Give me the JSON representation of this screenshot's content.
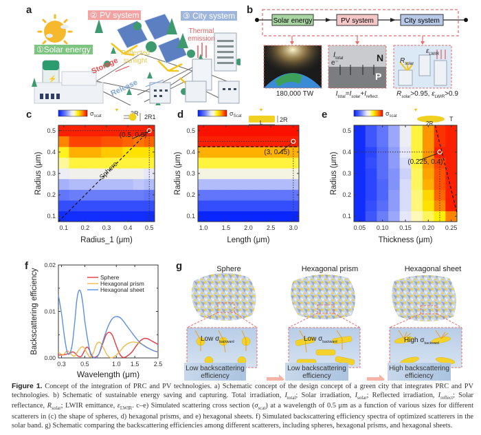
{
  "panel_labels": [
    "a",
    "b",
    "c",
    "d",
    "e",
    "f",
    "g"
  ],
  "panel_a": {
    "solar_energy": "①Solar energy",
    "pv_system": "② PV system",
    "city_system": "③ City system",
    "reflected_sunlight": "Reflected sunlight",
    "thermal_emission": "Thermal emission",
    "storage": "Storage",
    "release": "Release",
    "colors": {
      "solar": "#7cc47f",
      "pv": "#f4a3a3",
      "city": "#9fb6dc",
      "storage": "#e84c4c",
      "release": "#7ea6d8",
      "reflected": "#f0d060"
    }
  },
  "panel_b": {
    "nodes": [
      {
        "label": "Solar energy",
        "color": "#a8d5a2"
      },
      {
        "label": "PV system",
        "color": "#f6c7c7"
      },
      {
        "label": "City system",
        "color": "#b8c9e8"
      }
    ],
    "captions": [
      "180,000 TW",
      "I_total = I_solar + I_reflect",
      "R_solar>0.95, ε_LWIR>0.9"
    ],
    "inset_text": {
      "i_total": "I",
      "i_total_sub": "total",
      "e": "e⁻",
      "n": "N",
      "p": "P",
      "r_solar": "R",
      "r_solar_sub": "solar",
      "eps": "ε",
      "eps_sub": "LWIR",
      "earth_digits": "180000000000000000W"
    }
  },
  "chart_data": [
    {
      "panel": "c",
      "type": "heatmap",
      "title": "",
      "xlabel": "Radius_1 (μm)",
      "ylabel": "Radius (μm)",
      "xlim": [
        0.075,
        0.525
      ],
      "ylim": [
        0.075,
        0.525
      ],
      "xticks": [
        "0.1",
        "0.2",
        "0.3",
        "0.4",
        "0.5"
      ],
      "yticks": [
        "0.1",
        "0.2",
        "0.3",
        "0.4",
        "0.5"
      ],
      "colorbar": {
        "min": "0.0",
        "max": "2.3",
        "label": "σscat"
      },
      "schematic": {
        "source": "TFSF",
        "dim1": "2R",
        "dim2": "2R1"
      },
      "annotation": {
        "text": "(0.5, 0.5)",
        "x": 0.5,
        "y": 0.5
      },
      "diagonal_label": "Sphere",
      "x": [
        0.1,
        0.15,
        0.2,
        0.25,
        0.3,
        0.35,
        0.4,
        0.45,
        0.5
      ],
      "y": [
        0.1,
        0.15,
        0.2,
        0.25,
        0.3,
        0.35,
        0.4,
        0.45,
        0.5
      ],
      "z_rows_bottom_to_top": [
        [
          0.04,
          0.04,
          0.04,
          0.04,
          0.04,
          0.04,
          0.04,
          0.04,
          0.04
        ],
        [
          0.12,
          0.12,
          0.12,
          0.12,
          0.12,
          0.12,
          0.12,
          0.12,
          0.12
        ],
        [
          0.22,
          0.24,
          0.24,
          0.24,
          0.24,
          0.24,
          0.24,
          0.24,
          0.22
        ],
        [
          0.34,
          0.36,
          0.36,
          0.36,
          0.36,
          0.36,
          0.36,
          0.38,
          0.36
        ],
        [
          0.46,
          0.48,
          0.48,
          0.48,
          0.48,
          0.48,
          0.48,
          0.48,
          0.44
        ],
        [
          0.58,
          0.64,
          0.64,
          0.64,
          0.64,
          0.64,
          0.64,
          0.64,
          0.64
        ],
        [
          0.66,
          0.78,
          0.78,
          0.78,
          0.74,
          0.74,
          0.7,
          0.7,
          0.7
        ],
        [
          0.84,
          0.92,
          0.92,
          0.92,
          0.9,
          0.9,
          0.88,
          0.86,
          0.88
        ],
        [
          0.96,
          0.96,
          0.96,
          0.96,
          0.96,
          0.96,
          0.96,
          0.96,
          0.96
        ]
      ]
    },
    {
      "panel": "d",
      "type": "heatmap",
      "xlabel": "Length (μm)",
      "ylabel": "Radius (μm)",
      "xlim": [
        0.875,
        3.125
      ],
      "ylim": [
        0.075,
        0.525
      ],
      "xticks": [
        "1.0",
        "1.5",
        "2.0",
        "2.5",
        "3.0"
      ],
      "yticks": [
        "0.1",
        "0.2",
        "0.3",
        "0.4",
        "0.5"
      ],
      "colorbar": {
        "min": "0.0",
        "max": "2.5",
        "label": "σScat"
      },
      "schematic": {
        "source": "TFSF",
        "dim1": "2R",
        "dim2": "L"
      },
      "annotation": {
        "text": "(3, 0.45)",
        "x": 3.0,
        "y": 0.45
      },
      "dashed_line_y": 0.425,
      "x": [
        1.0,
        1.25,
        1.5,
        1.75,
        2.0,
        2.25,
        2.5,
        2.75,
        3.0
      ],
      "y": [
        0.1,
        0.15,
        0.2,
        0.25,
        0.3,
        0.35,
        0.4,
        0.45,
        0.5
      ],
      "row_values_bottom_to_top": [
        0.02,
        0.12,
        0.22,
        0.36,
        0.5,
        0.64,
        0.78,
        0.96,
        0.98
      ]
    },
    {
      "panel": "e",
      "type": "heatmap",
      "xlabel": "Thickness (μm)",
      "ylabel": "Radius (μm)",
      "xlim": [
        0.0375,
        0.2625
      ],
      "ylim": [
        0.075,
        0.525
      ],
      "xticks": [
        "0.05",
        "0.10",
        "0.15",
        "0.20",
        "0.25"
      ],
      "yticks": [
        "0.1",
        "0.2",
        "0.3",
        "0.4",
        "0.5"
      ],
      "colorbar": {
        "min": "0.0",
        "max": "0.33",
        "label": "σscat"
      },
      "schematic": {
        "source": "TFSF",
        "dim1": "2R",
        "dim2": "T"
      },
      "annotation": {
        "text": "(0.225, 0.4)",
        "x": 0.225,
        "y": 0.4
      },
      "x": [
        0.05,
        0.075,
        0.1,
        0.125,
        0.15,
        0.175,
        0.2,
        0.225,
        0.25
      ],
      "y": [
        0.1,
        0.15,
        0.2,
        0.25,
        0.3,
        0.35,
        0.4,
        0.45,
        0.5
      ],
      "z_rows_bottom_to_top": [
        [
          0.04,
          0.14,
          0.24,
          0.32,
          0.44,
          0.56,
          0.62,
          0.68,
          0.84
        ],
        [
          0.04,
          0.12,
          0.2,
          0.3,
          0.42,
          0.6,
          0.7,
          0.84,
          0.96
        ],
        [
          0.04,
          0.1,
          0.18,
          0.3,
          0.42,
          0.6,
          0.72,
          0.88,
          0.96
        ],
        [
          0.04,
          0.1,
          0.18,
          0.28,
          0.42,
          0.62,
          0.78,
          0.9,
          0.96
        ],
        [
          0.04,
          0.1,
          0.2,
          0.28,
          0.4,
          0.62,
          0.8,
          0.9,
          0.96
        ],
        [
          0.04,
          0.12,
          0.2,
          0.3,
          0.42,
          0.64,
          0.82,
          0.92,
          0.96
        ],
        [
          0.04,
          0.1,
          0.2,
          0.3,
          0.44,
          0.64,
          0.82,
          0.96,
          0.96
        ],
        [
          0.04,
          0.14,
          0.22,
          0.32,
          0.46,
          0.64,
          0.82,
          0.94,
          0.96
        ],
        [
          0.04,
          0.14,
          0.22,
          0.32,
          0.46,
          0.64,
          0.82,
          0.94,
          0.96
        ]
      ],
      "dashed_line": [
        [
          0.215,
          0.525
        ],
        [
          0.262,
          0.12
        ]
      ]
    },
    {
      "panel": "f",
      "type": "line",
      "xlabel": "Wavelength (μm)",
      "ylabel": "Backscattering efficiency",
      "xlim": [
        0.28,
        2.5
      ],
      "ylim": [
        0.0,
        0.02
      ],
      "xscale": "log",
      "xticks": [
        "0.3",
        "0.5",
        "1.0",
        "1.5",
        "2.5"
      ],
      "yticks": [
        "0.00",
        "0.01",
        "0.02"
      ],
      "legend_position": "top-right",
      "series": [
        {
          "name": "Sphere",
          "color": "#e8383d",
          "x": [
            0.28,
            0.32,
            0.36,
            0.38,
            0.4,
            0.43,
            0.46,
            0.48,
            0.52,
            0.55,
            0.58,
            0.62,
            0.68,
            0.74,
            0.8,
            0.86,
            0.92,
            1.0,
            1.08,
            1.16,
            1.25,
            1.4,
            1.55,
            1.7,
            1.85,
            2.0,
            2.2,
            2.5
          ],
          "y": [
            0.0006,
            0.0007,
            0.001,
            0.0013,
            0.0011,
            0.0004,
            0.0003,
            0.0009,
            0.0023,
            0.0018,
            0.0004,
            0.0001,
            0.0008,
            0.003,
            0.005,
            0.0055,
            0.0048,
            0.0026,
            0.0008,
            0.0001,
            0.0003,
            0.0012,
            0.0026,
            0.0037,
            0.0042,
            0.0041,
            0.0036,
            0.0029
          ]
        },
        {
          "name": "Hexagonal prism",
          "color": "#f2b84a",
          "x": [
            0.28,
            0.31,
            0.34,
            0.37,
            0.4,
            0.44,
            0.48,
            0.52,
            0.56,
            0.6,
            0.65,
            0.7,
            0.76,
            0.82,
            0.9,
            1.0,
            1.1,
            1.2,
            1.35,
            1.5,
            1.7,
            1.9,
            2.1,
            2.3,
            2.5
          ],
          "y": [
            0.0012,
            0.0007,
            0.0015,
            0.0008,
            0.0004,
            0.0018,
            0.0024,
            0.0012,
            0.0002,
            0.001,
            0.003,
            0.0033,
            0.002,
            0.0006,
            0.0,
            0.0006,
            0.0016,
            0.0026,
            0.0033,
            0.0034,
            0.0031,
            0.0025,
            0.0019,
            0.0015,
            0.0012
          ]
        },
        {
          "name": "Hexagonal sheet",
          "color": "#5b8fe0",
          "x": [
            0.28,
            0.3,
            0.32,
            0.34,
            0.36,
            0.38,
            0.4,
            0.42,
            0.44,
            0.46,
            0.48,
            0.5,
            0.53,
            0.56,
            0.6,
            0.64,
            0.68,
            0.72,
            0.78,
            0.85,
            0.92,
            1.0,
            1.08,
            1.16,
            1.25,
            1.4,
            1.55,
            1.7,
            1.9,
            2.1,
            2.3,
            2.5
          ],
          "y": [
            0.0135,
            0.0095,
            0.0045,
            0.0012,
            0.001,
            0.003,
            0.0075,
            0.0125,
            0.0145,
            0.014,
            0.0115,
            0.008,
            0.0042,
            0.0015,
            0.0002,
            0.0,
            0.0008,
            0.0025,
            0.005,
            0.0072,
            0.0085,
            0.0089,
            0.0087,
            0.008,
            0.007,
            0.0055,
            0.0042,
            0.0032,
            0.0024,
            0.0019,
            0.0015,
            0.0013
          ]
        }
      ]
    }
  ],
  "panel_g": {
    "columns": [
      {
        "title": "Sphere",
        "inset_label": "Low σ",
        "inset_sub": "backward",
        "box": [
          "Low backscattering",
          "efficiency"
        ]
      },
      {
        "title": "Hexagonal prism",
        "inset_label": "Low σ",
        "inset_sub": "backward",
        "box": [
          "Low backscattering",
          "efficiency"
        ]
      },
      {
        "title": "Hexagonal sheet",
        "inset_label": "High σ",
        "inset_sub": "backward",
        "box": [
          "High backscattering",
          "efficiency"
        ]
      }
    ]
  },
  "caption": {
    "label": "Figure 1.",
    "text": "Concept of the integration of PRC and PV technologies. a) Schematic concept of the design concept of a green city that integrates PRC and PV technologies. b) Schematic of sustainable energy saving and capturing. Total irradiation, I_total; Solar irradiation, I_solar; Reflected irradiation, I_reflect; Solar reflectance, R_solar; LWIR emittance, ε_LWIR. c–e) Simulated scattering cross section (σ_scat) at a wavelength of 0.5 μm as a function of various sizes for different scatterers in (c) the shape of spheres, d) hexagonal prisms, and e) hexagonal sheets. f) Simulated backscattering efficiency spectra of optimized scatterers in the solar band. g) Schematic comparing the backscattering efficiencies among different scatterers, including spheres, hexagonal prisms, and hexagonal sheets.",
    "segments": [
      "Concept of the integration of PRC and PV technologies. a) Schematic concept of the design concept of a green city that integrates PRC and PV technologies. b) Schematic of sustainable energy saving and capturing. Total irradiation, ",
      "I",
      "total",
      "; Solar irradiation, ",
      "I",
      "solar",
      "; Reflected irradiation, ",
      "I",
      "reflect",
      "; Solar reflectance, ",
      "R",
      "solar",
      "; LWIR emittance, ",
      "ε",
      "LWIR",
      ". c–e) Simulated scattering cross section (",
      "σ",
      "scat",
      ") at a wavelength of 0.5 μm as a function of various sizes for different scatterers in (c) the shape of spheres, d) hexagonal prisms, and e) hexagonal sheets. f) Simulated backscattering efficiency spectra of optimized scatterers in the solar band. g) Schematic comparing the backscattering efficiencies among different scatterers, including spheres, hexagonal prisms, and hexagonal sheets."
    ]
  }
}
